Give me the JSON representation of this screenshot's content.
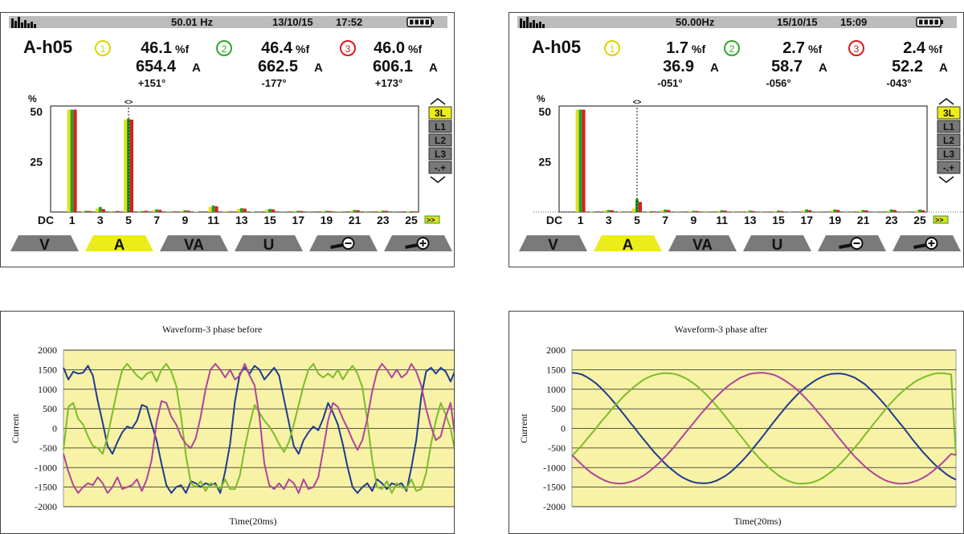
{
  "chart_data": [
    {
      "type": "bar",
      "status": {
        "frequency": "50.01 Hz",
        "date": "13/10/15",
        "time": "17:52"
      },
      "header": {
        "mode": "A-h05",
        "phase_markers": [
          "1",
          "2",
          "3"
        ],
        "percent": [
          "46.1",
          "46.4",
          "46.0"
        ],
        "percent_unit": "%f",
        "amps": [
          "654.4",
          "662.5",
          "606.1"
        ],
        "amps_unit": "A",
        "angles": [
          "+151°",
          "-177°",
          "+173°"
        ]
      },
      "y_unit": "%",
      "yticks": [
        "50",
        "25"
      ],
      "ylim": [
        0,
        52
      ],
      "xticks": [
        "DC",
        "1",
        "3",
        "5",
        "7",
        "9",
        "11",
        "13",
        "15",
        "17",
        "19",
        "21",
        "23",
        "25"
      ],
      "harmonic_orders": [
        "DC",
        "1",
        "2",
        "3",
        "4",
        "5",
        "6",
        "7",
        "8",
        "9",
        "10",
        "11",
        "12",
        "13",
        "14",
        "15",
        "16",
        "17",
        "18",
        "19",
        "20",
        "21",
        "22",
        "23",
        "24",
        "25"
      ],
      "series": [
        {
          "name": "L1",
          "values": [
            0,
            51,
            0.3,
            1.8,
            0.4,
            46.1,
            0.5,
            1.0,
            0.3,
            0.6,
            0.2,
            2.5,
            0.3,
            1.5,
            0.2,
            1.2,
            0.1,
            0.5,
            0.1,
            0.5,
            0.1,
            0.8,
            0.1,
            0.6,
            0.1,
            0.3
          ]
        },
        {
          "name": "L2",
          "values": [
            0,
            51,
            0.6,
            2.5,
            0.3,
            46.4,
            0.4,
            1.3,
            0.2,
            0.8,
            0.3,
            3.2,
            0.2,
            1.9,
            0.3,
            1.5,
            0.2,
            0.6,
            0.1,
            0.6,
            0.2,
            1.0,
            0.1,
            0.7,
            0.1,
            0.4
          ]
        },
        {
          "name": "L3",
          "values": [
            0,
            51,
            0.5,
            1.5,
            0.5,
            46.0,
            0.6,
            1.1,
            0.3,
            0.7,
            0.3,
            2.8,
            0.3,
            1.7,
            0.2,
            1.3,
            0.1,
            0.5,
            0.1,
            0.5,
            0.1,
            0.9,
            0.1,
            0.6,
            0.1,
            0.3
          ]
        }
      ],
      "cursor_order": "5",
      "side_buttons": [
        "3L",
        "L1",
        "L2",
        "L3",
        "-.+"
      ],
      "side_selected": "3L",
      "tabs": [
        "V",
        "A",
        "VA",
        "U",
        "zoom-out",
        "zoom-in"
      ],
      "tab_selected": "A"
    },
    {
      "type": "bar",
      "status": {
        "frequency": "50.00Hz",
        "date": "15/10/15",
        "time": "15:09"
      },
      "header": {
        "mode": "A-h05",
        "phase_markers": [
          "1",
          "2",
          "3"
        ],
        "percent": [
          "1.7",
          "2.7",
          "2.4"
        ],
        "percent_unit": "%f",
        "amps": [
          "36.9",
          "58.7",
          "52.2"
        ],
        "amps_unit": "A",
        "angles": [
          "-051°",
          "-056°",
          "-043°"
        ]
      },
      "y_unit": "%",
      "yticks": [
        "50",
        "25"
      ],
      "ylim": [
        0,
        52
      ],
      "xticks": [
        "DC",
        "1",
        "3",
        "5",
        "7",
        "9",
        "11",
        "13",
        "15",
        "17",
        "19",
        "21",
        "23",
        "25"
      ],
      "harmonic_orders": [
        "DC",
        "1",
        "2",
        "3",
        "4",
        "5",
        "6",
        "7",
        "8",
        "9",
        "10",
        "11",
        "12",
        "13",
        "14",
        "15",
        "16",
        "17",
        "18",
        "19",
        "20",
        "21",
        "22",
        "23",
        "24",
        "25"
      ],
      "series": [
        {
          "name": "L1",
          "values": [
            0,
            51,
            0.2,
            0.8,
            0.2,
            1.7,
            0.3,
            0.9,
            0.1,
            0.4,
            0.1,
            0.6,
            0.1,
            0.5,
            0.1,
            0.4,
            0.1,
            0.8,
            0.1,
            0.9,
            0.1,
            0.6,
            0.1,
            0.8,
            0.1,
            0.8
          ]
        },
        {
          "name": "L2",
          "values": [
            0,
            51,
            0.3,
            1.0,
            0.3,
            6.5,
            0.4,
            1.2,
            0.2,
            0.6,
            0.2,
            0.9,
            0.1,
            0.7,
            0.1,
            0.7,
            0.1,
            1.3,
            0.1,
            1.3,
            0.1,
            1.0,
            0.1,
            1.3,
            0.1,
            1.2
          ]
        },
        {
          "name": "L3",
          "values": [
            0,
            51,
            0.3,
            0.9,
            0.2,
            5.0,
            0.3,
            1.0,
            0.1,
            0.5,
            0.1,
            0.7,
            0.1,
            0.5,
            0.1,
            0.5,
            0.1,
            0.9,
            0.1,
            1.0,
            0.1,
            0.8,
            0.1,
            1.0,
            0.1,
            0.9
          ]
        }
      ],
      "cursor_order": "5",
      "side_buttons": [
        "3L",
        "L1",
        "L2",
        "L3",
        "-.+"
      ],
      "side_selected": "3L",
      "tabs": [
        "V",
        "A",
        "VA",
        "U",
        "zoom-out",
        "zoom-in"
      ],
      "tab_selected": "A"
    },
    {
      "type": "line",
      "title": "Waveform-3 phase before",
      "xlabel": "Time(20ms)",
      "ylabel": "Current",
      "ylim": [
        -2000,
        2000
      ],
      "yticks": [
        2000,
        1500,
        1000,
        500,
        0,
        -500,
        -1000,
        -1500,
        -2000
      ],
      "grid": true,
      "x": [
        0.0,
        0.0125,
        0.025,
        0.0375,
        0.05,
        0.0625,
        0.075,
        0.0875,
        0.1,
        0.1125,
        0.125,
        0.1375,
        0.15,
        0.1625,
        0.175,
        0.1875,
        0.2,
        0.2125,
        0.225,
        0.2375,
        0.25,
        0.2625,
        0.275,
        0.2875,
        0.3,
        0.3125,
        0.325,
        0.3375,
        0.35,
        0.3625,
        0.375,
        0.3875,
        0.4,
        0.4125,
        0.425,
        0.4375,
        0.45,
        0.4625,
        0.475,
        0.4875,
        0.5,
        0.5125,
        0.525,
        0.5375,
        0.55,
        0.5625,
        0.575,
        0.5875,
        0.6,
        0.6125,
        0.625,
        0.6375,
        0.65,
        0.6625,
        0.675,
        0.6875,
        0.7,
        0.7125,
        0.725,
        0.7375,
        0.75,
        0.7625,
        0.775,
        0.7875,
        0.8,
        0.8125,
        0.825,
        0.8375,
        0.85,
        0.8625,
        0.875,
        0.8875,
        0.9,
        0.9125,
        0.925,
        0.9375,
        0.95,
        0.9625,
        0.975,
        0.9875,
        1.0
      ],
      "series": [
        {
          "color": "#1f3b8f",
          "values": [
            1550,
            1250,
            1450,
            1400,
            1420,
            1600,
            1350,
            700,
            150,
            -450,
            -650,
            -350,
            -100,
            50,
            0,
            200,
            600,
            550,
            100,
            -300,
            -900,
            -1450,
            -1650,
            -1500,
            -1450,
            -1650,
            -1350,
            -1400,
            -1500,
            -1400,
            -1450,
            -1400,
            -1650,
            -1100,
            -400,
            700,
            1400,
            1550,
            1400,
            1600,
            1500,
            1250,
            1400,
            1550,
            1350,
            750,
            150,
            -450,
            -650,
            -300,
            -100,
            50,
            -50,
            250,
            650,
            400,
            100,
            -400,
            -1000,
            -1500,
            -1650,
            -1500,
            -1400,
            -1600,
            -1300,
            -1400,
            -1550,
            -1400,
            -1450,
            -1400,
            -1600,
            -1000,
            -300,
            800,
            1450,
            1550,
            1400,
            1550,
            1450,
            1200,
            1500
          ]
        },
        {
          "color": "#7cbc2a",
          "values": [
            -550,
            550,
            650,
            250,
            100,
            -200,
            -450,
            -500,
            -650,
            -200,
            400,
            1000,
            1500,
            1650,
            1500,
            1350,
            1250,
            1400,
            1450,
            1200,
            1500,
            1650,
            1450,
            1100,
            300,
            -700,
            -1400,
            -1500,
            -1350,
            -1600,
            -1400,
            -1450,
            -1550,
            -1300,
            -1550,
            -1550,
            -1200,
            -500,
            100,
            600,
            400,
            200,
            50,
            -150,
            -400,
            -600,
            -350,
            100,
            600,
            1100,
            1500,
            1650,
            1400,
            1300,
            1400,
            1300,
            1500,
            1250,
            1450,
            1600,
            1400,
            1050,
            200,
            -800,
            -1500,
            -1550,
            -1350,
            -1650,
            -1400,
            -1500,
            -1550,
            -1300,
            -1600,
            -1550,
            -1150,
            -400,
            200,
            650,
            350,
            0,
            -650
          ]
        },
        {
          "color": "#b0449a",
          "values": [
            -650,
            -1100,
            -1450,
            -1650,
            -1500,
            -1400,
            -1450,
            -1250,
            -1400,
            -1650,
            -1500,
            -1250,
            -1550,
            -1500,
            -1450,
            -1300,
            -1600,
            -1300,
            -800,
            150,
            700,
            650,
            300,
            100,
            -200,
            -400,
            -500,
            -250,
            300,
            1000,
            1500,
            1650,
            1500,
            1300,
            1500,
            1250,
            1350,
            1650,
            1350,
            1100,
            300,
            -900,
            -1450,
            -1550,
            -1400,
            -1550,
            -1300,
            -1400,
            -1650,
            -1300,
            -1550,
            -1500,
            -1250,
            -550,
            200,
            650,
            550,
            250,
            0,
            -300,
            -550,
            -300,
            250,
            950,
            1450,
            1650,
            1500,
            1300,
            1500,
            1300,
            1400,
            1650,
            1450,
            1100,
            500,
            50,
            -300,
            -200,
            300,
            650,
            -300
          ]
        }
      ]
    },
    {
      "type": "line",
      "title": "Waveform-3 phase after",
      "xlabel": "Time(20ms)",
      "ylabel": "Current",
      "ylim": [
        -2000,
        2000
      ],
      "yticks": [
        2000,
        1500,
        1000,
        500,
        0,
        -500,
        -1000,
        -1500,
        -2000
      ],
      "grid": true,
      "x": [
        0.0,
        0.0125,
        0.025,
        0.0375,
        0.05,
        0.0625,
        0.075,
        0.0875,
        0.1,
        0.1125,
        0.125,
        0.1375,
        0.15,
        0.1625,
        0.175,
        0.1875,
        0.2,
        0.2125,
        0.225,
        0.2375,
        0.25,
        0.2625,
        0.275,
        0.2875,
        0.3,
        0.3125,
        0.325,
        0.3375,
        0.35,
        0.3625,
        0.375,
        0.3875,
        0.4,
        0.4125,
        0.425,
        0.4375,
        0.45,
        0.4625,
        0.475,
        0.4875,
        0.5,
        0.5125,
        0.525,
        0.5375,
        0.55,
        0.5625,
        0.575,
        0.5875,
        0.6,
        0.6125,
        0.625,
        0.6375,
        0.65,
        0.6625,
        0.675,
        0.6875,
        0.7,
        0.7125,
        0.725,
        0.7375,
        0.75,
        0.7625,
        0.775,
        0.7875,
        0.8,
        0.8125,
        0.825,
        0.8375,
        0.85,
        0.8625,
        0.875,
        0.8875,
        0.9,
        0.9125,
        0.925,
        0.9375,
        0.95,
        0.9625,
        0.975,
        0.9875,
        1.0
      ],
      "series": [
        {
          "color": "#1f3b8f",
          "values": [
            1420,
            1410,
            1380,
            1320,
            1240,
            1150,
            1040,
            910,
            780,
            630,
            480,
            330,
            170,
            20,
            -140,
            -290,
            -440,
            -590,
            -720,
            -850,
            -970,
            -1070,
            -1170,
            -1250,
            -1310,
            -1360,
            -1390,
            -1400,
            -1400,
            -1380,
            -1340,
            -1280,
            -1210,
            -1120,
            -1010,
            -890,
            -760,
            -620,
            -470,
            -320,
            -160,
            0,
            160,
            310,
            460,
            610,
            740,
            870,
            980,
            1080,
            1170,
            1250,
            1310,
            1360,
            1390,
            1400,
            1400,
            1380,
            1340,
            1290,
            1210,
            1130,
            1020,
            900,
            770,
            630,
            490,
            330,
            180,
            30,
            -130,
            -290,
            -440,
            -590,
            -720,
            -850,
            -970,
            -1070,
            -1170,
            -1250,
            -1310
          ]
        },
        {
          "color": "#7cbc2a",
          "values": [
            -700,
            -570,
            -440,
            -290,
            -140,
            0,
            160,
            300,
            450,
            590,
            720,
            850,
            960,
            1070,
            1160,
            1250,
            1310,
            1360,
            1390,
            1410,
            1410,
            1400,
            1370,
            1320,
            1260,
            1180,
            1090,
            980,
            860,
            730,
            590,
            450,
            300,
            140,
            -10,
            -170,
            -320,
            -480,
            -620,
            -760,
            -880,
            -1000,
            -1100,
            -1200,
            -1280,
            -1340,
            -1380,
            -1410,
            -1410,
            -1400,
            -1380,
            -1340,
            -1280,
            -1200,
            -1110,
            -1010,
            -890,
            -760,
            -620,
            -480,
            -330,
            -170,
            -20,
            140,
            290,
            440,
            590,
            720,
            850,
            960,
            1060,
            1150,
            1230,
            1290,
            1340,
            1380,
            1410,
            1410,
            1400,
            1380,
            -700
          ]
        },
        {
          "color": "#b0449a",
          "values": [
            -680,
            -800,
            -920,
            -1030,
            -1130,
            -1210,
            -1280,
            -1340,
            -1380,
            -1400,
            -1410,
            -1400,
            -1370,
            -1330,
            -1270,
            -1200,
            -1110,
            -1010,
            -900,
            -780,
            -650,
            -510,
            -360,
            -210,
            -60,
            90,
            240,
            390,
            530,
            670,
            800,
            920,
            1030,
            1130,
            1210,
            1290,
            1340,
            1390,
            1410,
            1420,
            1420,
            1400,
            1370,
            1320,
            1250,
            1170,
            1080,
            980,
            860,
            730,
            600,
            450,
            310,
            160,
            10,
            -150,
            -300,
            -450,
            -590,
            -730,
            -850,
            -970,
            -1070,
            -1160,
            -1240,
            -1310,
            -1360,
            -1390,
            -1410,
            -1410,
            -1400,
            -1370,
            -1330,
            -1270,
            -1200,
            -1110,
            -1010,
            -900,
            -780,
            -650,
            -680
          ]
        }
      ]
    }
  ]
}
